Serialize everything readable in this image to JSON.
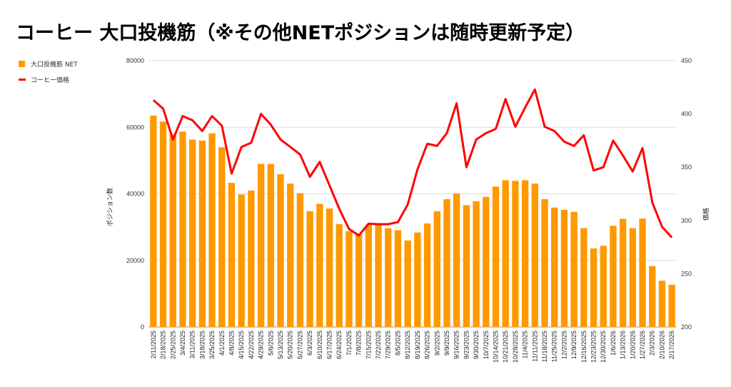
{
  "chart_data": {
    "type": "bar+line",
    "title": "コーヒー 大口投機筋（※その他NETポジションは随時更新予定）",
    "legend_position": "top-left",
    "legend": [
      "大口投機筋  NET",
      "コーヒー価格"
    ],
    "ylabel_left": "ポジション数",
    "ylabel_right": "価格",
    "ylim_left": [
      0,
      80000
    ],
    "ylim_right": [
      200,
      450
    ],
    "yticks_left": [
      "0",
      "20000",
      "40000",
      "60000",
      "80000"
    ],
    "yticks_right": [
      "200",
      "250",
      "300",
      "350",
      "400",
      "450"
    ],
    "grid": true,
    "categories": [
      "2/11/2025",
      "2/18/2025",
      "2/25/2025",
      "3/4/2025",
      "3/11/2025",
      "3/18/2025",
      "3/25/2025",
      "4/1/2025",
      "4/8/2025",
      "4/15/2025",
      "4/22/2025",
      "4/29/2025",
      "5/6/2025",
      "5/13/2025",
      "5/20/2025",
      "5/27/2025",
      "6/3/2025",
      "6/10/2025",
      "6/17/2025",
      "6/24/2025",
      "7/1/2025",
      "7/8/2025",
      "7/15/2025",
      "7/22/2025",
      "7/29/2025",
      "8/5/2025",
      "8/12/2025",
      "8/19/2025",
      "8/26/2025",
      "9/2/2025",
      "9/9/2025",
      "9/16/2025",
      "9/23/2025",
      "9/30/2025",
      "10/7/2025",
      "10/14/2025",
      "10/21/2025",
      "10/28/2025",
      "11/4/2025",
      "11/11/2025",
      "11/18/2025",
      "11/25/2025",
      "12/2/2025",
      "12/9/2025",
      "12/16/2025",
      "12/23/2025",
      "12/30/2025",
      "1/6/2026",
      "1/13/2026",
      "1/20/2026",
      "1/27/2026",
      "2/3/2026",
      "2/10/2026",
      "2/17/2026"
    ],
    "series": [
      {
        "name": "大口投機筋  NET",
        "type": "bar",
        "axis": "left",
        "color": "#ff9900",
        "values": [
          63500,
          61700,
          57800,
          58700,
          56300,
          56000,
          58200,
          54000,
          43300,
          39800,
          41000,
          49000,
          49000,
          45900,
          43100,
          40200,
          34800,
          37000,
          35600,
          30900,
          28800,
          27800,
          30800,
          30800,
          29700,
          29100,
          26000,
          28400,
          31100,
          34800,
          38400,
          40100,
          36600,
          37800,
          39100,
          42200,
          44100,
          43900,
          44100,
          43100,
          38400,
          35900,
          35200,
          34600,
          29700,
          23600,
          24400,
          30400,
          32500,
          29700,
          32600,
          18300,
          13900,
          12700
        ]
      },
      {
        "name": "コーヒー価格",
        "type": "line",
        "axis": "right",
        "color": "#ff0000",
        "values": [
          413,
          405,
          376,
          398,
          394,
          384,
          398,
          389,
          344,
          369,
          373,
          400,
          390,
          376,
          369,
          362,
          341,
          355,
          333,
          311,
          292,
          286,
          297,
          296.5,
          296.5,
          298.5,
          315,
          348,
          372,
          370,
          382,
          410,
          350,
          376,
          382,
          386,
          414,
          388,
          406,
          423,
          388,
          384,
          374,
          370,
          380,
          347,
          350,
          375,
          361,
          346,
          368,
          317,
          294,
          284
        ]
      }
    ]
  }
}
